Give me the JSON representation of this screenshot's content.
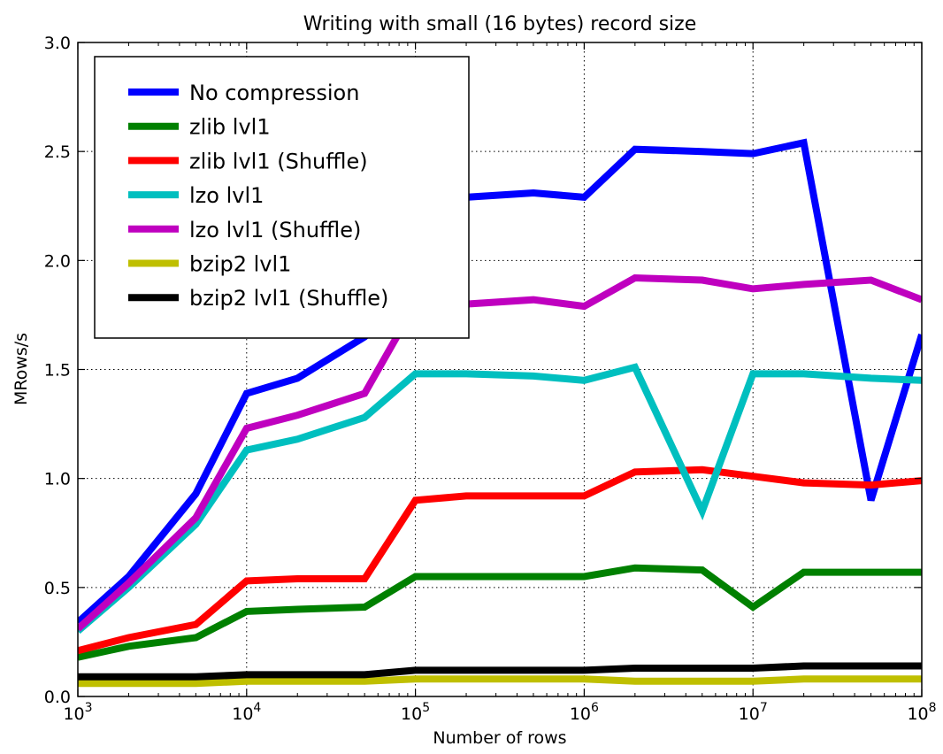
{
  "chart_data": {
    "type": "line",
    "title": "Writing with small (16 bytes) record size",
    "xlabel": "Number of rows",
    "ylabel": "MRows/s",
    "xscale": "log",
    "xlim": [
      1000,
      100000000
    ],
    "ylim": [
      0,
      3.0
    ],
    "grid": true,
    "legend_position": "top-left",
    "x": [
      1000,
      2000,
      5000,
      10000,
      20000,
      50000,
      100000,
      200000,
      500000,
      1000000,
      2000000,
      5000000,
      10000000,
      20000000,
      50000000,
      100000000
    ],
    "x_tick_labels": [
      {
        "base": "10",
        "exp": "3"
      },
      {
        "base": "10",
        "exp": "4"
      },
      {
        "base": "10",
        "exp": "5"
      },
      {
        "base": "10",
        "exp": "6"
      },
      {
        "base": "10",
        "exp": "7"
      },
      {
        "base": "10",
        "exp": "8"
      }
    ],
    "y_ticks": [
      0.0,
      0.5,
      1.0,
      1.5,
      2.0,
      2.5,
      3.0
    ],
    "y_tick_labels": [
      "0.0",
      "0.5",
      "1.0",
      "1.5",
      "2.0",
      "2.5",
      "3.0"
    ],
    "series": [
      {
        "name": "No compression",
        "color": "#0000ff",
        "values": [
          0.34,
          0.55,
          0.93,
          1.39,
          1.46,
          1.65,
          1.85,
          2.29,
          2.31,
          2.29,
          2.51,
          2.5,
          2.49,
          2.54,
          0.9,
          1.66
        ]
      },
      {
        "name": "zlib lvl1",
        "color": "#008000",
        "values": [
          0.18,
          0.23,
          0.27,
          0.39,
          0.4,
          0.41,
          0.55,
          0.55,
          0.55,
          0.55,
          0.59,
          0.58,
          0.41,
          0.57,
          0.57,
          0.57
        ]
      },
      {
        "name": "zlib lvl1 (Shuffle)",
        "color": "#ff0000",
        "values": [
          0.21,
          0.27,
          0.33,
          0.53,
          0.54,
          0.54,
          0.9,
          0.92,
          0.92,
          0.92,
          1.03,
          1.04,
          1.01,
          0.98,
          0.97,
          0.99
        ]
      },
      {
        "name": "lzo lvl1",
        "color": "#00bfbf",
        "values": [
          0.3,
          0.5,
          0.79,
          1.13,
          1.18,
          1.28,
          1.48,
          1.48,
          1.47,
          1.45,
          1.51,
          0.85,
          1.48,
          1.48,
          1.46,
          1.45
        ]
      },
      {
        "name": "lzo lvl1 (Shuffle)",
        "color": "#bf00bf",
        "values": [
          0.31,
          0.52,
          0.82,
          1.23,
          1.29,
          1.39,
          1.8,
          1.8,
          1.82,
          1.79,
          1.92,
          1.91,
          1.87,
          1.89,
          1.91,
          1.82
        ]
      },
      {
        "name": "bzip2 lvl1",
        "color": "#bfbf00",
        "values": [
          0.06,
          0.06,
          0.06,
          0.07,
          0.07,
          0.07,
          0.08,
          0.08,
          0.08,
          0.08,
          0.07,
          0.07,
          0.07,
          0.08,
          0.08,
          0.08
        ]
      },
      {
        "name": "bzip2 lvl1 (Shuffle)",
        "color": "#000000",
        "values": [
          0.09,
          0.09,
          0.09,
          0.1,
          0.1,
          0.1,
          0.12,
          0.12,
          0.12,
          0.12,
          0.13,
          0.13,
          0.13,
          0.14,
          0.14,
          0.14
        ]
      }
    ]
  }
}
